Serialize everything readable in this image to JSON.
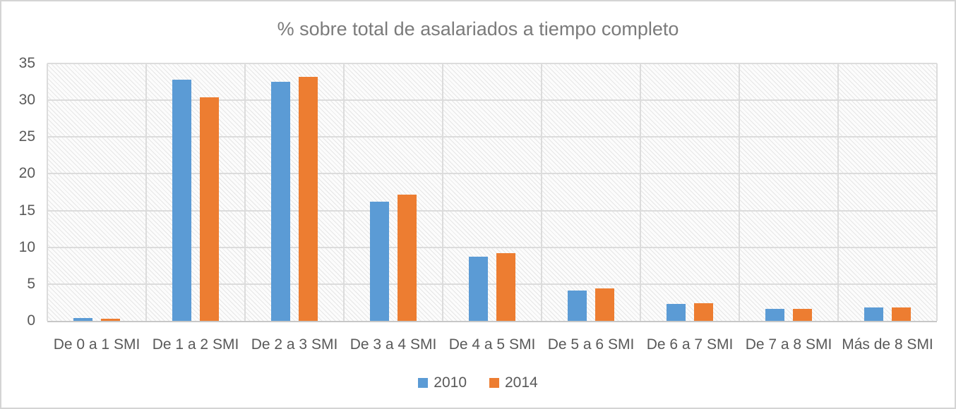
{
  "chart_data": {
    "type": "bar",
    "title": "% sobre total de asalariados a tiempo completo",
    "categories": [
      "De 0 a 1 SMI",
      "De 1 a 2 SMI",
      "De 2 a 3 SMI",
      "De 3 a 4 SMI",
      "De 4 a 5 SMI",
      "De 5 a 6 SMI",
      "De 6 a 7 SMI",
      "De 7 a 8 SMI",
      "Más de 8 SMI"
    ],
    "series": [
      {
        "name": "2010",
        "color": "#5B9BD5",
        "values": [
          0.4,
          32.8,
          32.5,
          16.2,
          8.7,
          4.1,
          2.3,
          1.6,
          1.8
        ]
      },
      {
        "name": "2014",
        "color": "#ED7D31",
        "values": [
          0.3,
          30.4,
          33.2,
          17.2,
          9.2,
          4.4,
          2.4,
          1.6,
          1.8
        ]
      }
    ],
    "xlabel": "",
    "ylabel": "",
    "ylim": [
      0,
      35
    ],
    "yticks": [
      0,
      5,
      10,
      15,
      20,
      25,
      30,
      35
    ],
    "grid": {
      "horizontal": true,
      "vertical_category_separators": true
    },
    "legend_position": "bottom-center",
    "plot_background": "light-diagonal-hatch"
  },
  "colors": {
    "series_2010": "#5B9BD5",
    "series_2014": "#ED7D31",
    "title_text": "#7B7B7B",
    "axis_text": "#595959",
    "gridline": "#DCDCDC"
  }
}
